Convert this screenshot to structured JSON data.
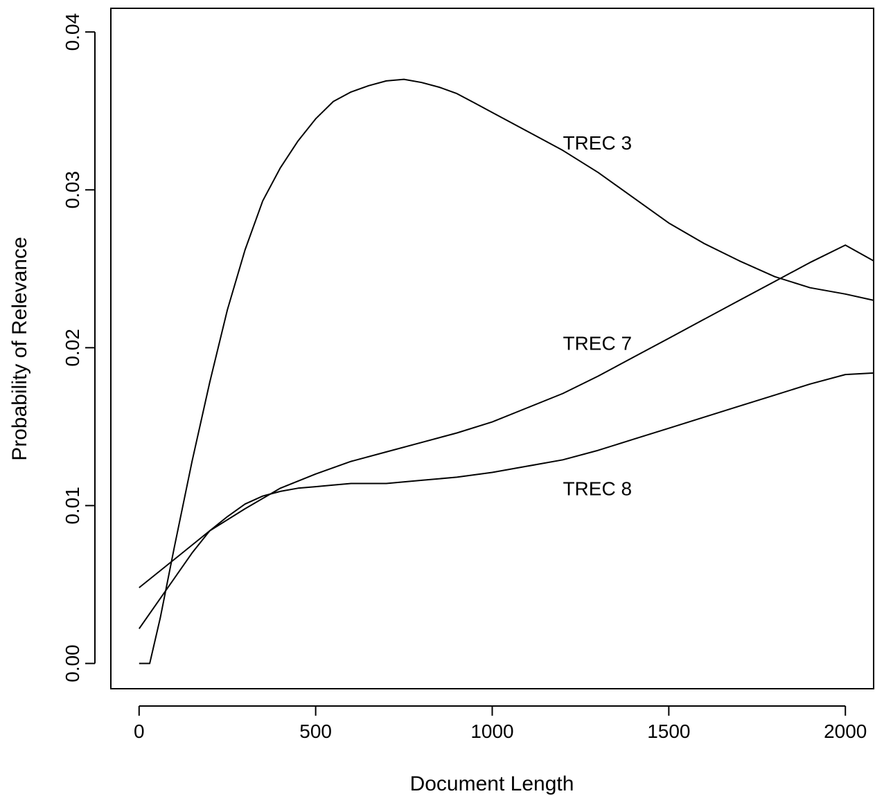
{
  "chart_data": {
    "type": "line",
    "xlabel": "Document Length",
    "ylabel": "Probability of Relevance",
    "xlim": [
      -80,
      2080
    ],
    "ylim": [
      -0.0016,
      0.0415
    ],
    "x_ticks": [
      0,
      500,
      1000,
      1500,
      2000
    ],
    "x_tick_labels": [
      "0",
      "500",
      "1000",
      "1500",
      "2000"
    ],
    "y_ticks": [
      0,
      0.01,
      0.02,
      0.03,
      0.04
    ],
    "y_tick_labels": [
      "0.00",
      "0.01",
      "0.02",
      "0.03",
      "0.04"
    ],
    "grid": false,
    "line_color": "#000000",
    "series": [
      {
        "name": "TREC 3",
        "label_position": [
          1200,
          0.033
        ],
        "points": [
          [
            0,
            0.0
          ],
          [
            30,
            0.0
          ],
          [
            60,
            0.0029
          ],
          [
            100,
            0.0074
          ],
          [
            150,
            0.0128
          ],
          [
            200,
            0.0178
          ],
          [
            250,
            0.0224
          ],
          [
            300,
            0.0262
          ],
          [
            350,
            0.0293
          ],
          [
            400,
            0.0314
          ],
          [
            450,
            0.0331
          ],
          [
            500,
            0.0345
          ],
          [
            550,
            0.0356
          ],
          [
            600,
            0.0362
          ],
          [
            650,
            0.0366
          ],
          [
            700,
            0.0369
          ],
          [
            750,
            0.037
          ],
          [
            800,
            0.0368
          ],
          [
            850,
            0.0365
          ],
          [
            900,
            0.0361
          ],
          [
            950,
            0.0355
          ],
          [
            1000,
            0.0349
          ],
          [
            1100,
            0.0337
          ],
          [
            1200,
            0.0325
          ],
          [
            1300,
            0.0311
          ],
          [
            1400,
            0.0295
          ],
          [
            1500,
            0.0279
          ],
          [
            1600,
            0.0266
          ],
          [
            1700,
            0.0255
          ],
          [
            1800,
            0.0245
          ],
          [
            1900,
            0.0238
          ],
          [
            2000,
            0.0234
          ],
          [
            2080,
            0.023
          ]
        ]
      },
      {
        "name": "TREC 7",
        "label_position": [
          1200,
          0.0203
        ],
        "points": [
          [
            0,
            0.0048
          ],
          [
            100,
            0.0066
          ],
          [
            200,
            0.0084
          ],
          [
            300,
            0.0098
          ],
          [
            400,
            0.0111
          ],
          [
            500,
            0.012
          ],
          [
            600,
            0.0128
          ],
          [
            700,
            0.0134
          ],
          [
            800,
            0.014
          ],
          [
            900,
            0.0146
          ],
          [
            1000,
            0.0153
          ],
          [
            1100,
            0.0162
          ],
          [
            1200,
            0.0171
          ],
          [
            1300,
            0.0182
          ],
          [
            1400,
            0.0194
          ],
          [
            1500,
            0.0206
          ],
          [
            1600,
            0.0218
          ],
          [
            1700,
            0.023
          ],
          [
            1800,
            0.0242
          ],
          [
            1900,
            0.0254
          ],
          [
            2000,
            0.0265
          ],
          [
            2080,
            0.0255
          ]
        ]
      },
      {
        "name": "TREC 8",
        "label_position": [
          1200,
          0.0111
        ],
        "points": [
          [
            0,
            0.0022
          ],
          [
            50,
            0.0038
          ],
          [
            100,
            0.0054
          ],
          [
            150,
            0.007
          ],
          [
            200,
            0.0084
          ],
          [
            250,
            0.0093
          ],
          [
            300,
            0.0101
          ],
          [
            350,
            0.0106
          ],
          [
            400,
            0.0109
          ],
          [
            450,
            0.0111
          ],
          [
            500,
            0.0112
          ],
          [
            550,
            0.0113
          ],
          [
            600,
            0.0114
          ],
          [
            650,
            0.0114
          ],
          [
            700,
            0.0114
          ],
          [
            800,
            0.0116
          ],
          [
            900,
            0.0118
          ],
          [
            1000,
            0.0121
          ],
          [
            1100,
            0.0125
          ],
          [
            1200,
            0.0129
          ],
          [
            1300,
            0.0135
          ],
          [
            1400,
            0.0142
          ],
          [
            1500,
            0.0149
          ],
          [
            1600,
            0.0156
          ],
          [
            1700,
            0.0163
          ],
          [
            1800,
            0.017
          ],
          [
            1900,
            0.0177
          ],
          [
            2000,
            0.0183
          ],
          [
            2080,
            0.0184
          ]
        ]
      }
    ]
  }
}
